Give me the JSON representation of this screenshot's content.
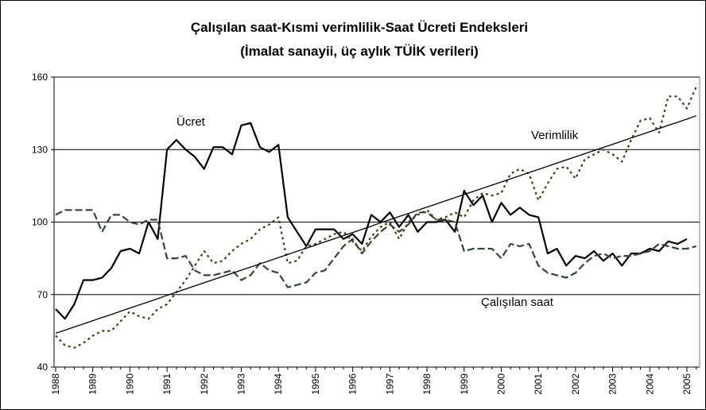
{
  "chart_data": {
    "type": "line",
    "title": "Çalışılan saat-Kısmi verimlilik-Saat Ücreti Endeksleri",
    "subtitle": "(İmalat sanayii, üç aylık TÜİK verileri)",
    "categories": [
      "1988",
      null,
      null,
      null,
      "1989",
      null,
      null,
      null,
      "1990",
      null,
      null,
      null,
      "1991",
      null,
      null,
      null,
      "1992",
      null,
      null,
      null,
      "1993",
      null,
      null,
      null,
      "1994",
      null,
      null,
      null,
      "1995",
      null,
      null,
      null,
      "1996",
      null,
      null,
      null,
      "1997",
      null,
      null,
      null,
      "1998",
      null,
      null,
      null,
      "1999",
      null,
      null,
      null,
      "2000",
      null,
      null,
      null,
      "2001",
      null,
      null,
      null,
      "2002",
      null,
      null,
      null,
      "2003",
      null,
      null,
      null,
      "2004",
      null,
      null,
      null,
      "2005",
      null
    ],
    "ylim": [
      40,
      160
    ],
    "yticks": [
      40,
      70,
      100,
      130,
      160
    ],
    "grid": true,
    "series": [
      {
        "name": "Ücret",
        "color": "#000000",
        "dash": "none",
        "values": [
          64,
          60,
          66,
          76,
          76,
          77,
          81,
          88,
          89,
          87,
          100,
          93,
          130,
          134,
          130,
          127,
          122,
          131,
          131,
          128,
          140,
          141,
          131,
          129,
          132,
          102,
          96,
          90,
          97,
          97,
          97,
          93,
          95,
          91,
          103,
          100,
          104,
          98,
          103,
          96,
          100,
          100,
          101,
          96,
          113,
          107,
          111,
          100,
          108,
          103,
          106,
          103,
          102,
          87,
          89,
          82,
          86,
          85,
          88,
          84,
          87,
          82,
          87,
          87,
          89,
          88,
          92,
          91,
          93,
          null
        ]
      },
      {
        "name": "Verimlilik",
        "color": "#3f3f12",
        "dash": "3,4",
        "values": [
          53,
          49,
          48,
          50,
          53,
          55,
          55,
          59,
          63,
          61,
          60,
          64,
          66,
          71,
          76,
          82,
          88,
          83,
          84,
          88,
          91,
          93,
          97,
          99,
          102,
          83,
          84,
          90,
          91,
          93,
          95,
          96,
          92,
          88,
          94,
          98,
          100,
          93,
          100,
          103,
          105,
          101,
          102,
          104,
          102,
          109,
          112,
          111,
          112,
          120,
          122,
          120,
          109,
          116,
          122,
          123,
          118,
          126,
          128,
          130,
          128,
          125,
          134,
          142,
          143,
          137,
          152,
          152,
          147,
          156
        ]
      },
      {
        "name": "Çalışılan saat",
        "color": "#2f4a2f",
        "dash": "9,4",
        "values": [
          103,
          105,
          105,
          105,
          105,
          96,
          103,
          103,
          100,
          99,
          101,
          101,
          85,
          85,
          86,
          80,
          78,
          78,
          79,
          80,
          76,
          78,
          83,
          80,
          79,
          73,
          74,
          75,
          79,
          80,
          85,
          90,
          93,
          87,
          92,
          96,
          99,
          96,
          99,
          104,
          104,
          101,
          101,
          100,
          88,
          89,
          89,
          89,
          85,
          91,
          90,
          91,
          82,
          79,
          78,
          77,
          79,
          83,
          86,
          87,
          85,
          86,
          86,
          87,
          88,
          91,
          90,
          89,
          89,
          90
        ]
      },
      {
        "color": "#000000",
        "dash": "none",
        "values": [
          54.0,
          55.3,
          56.6,
          57.9,
          59.2,
          60.5,
          61.8,
          63.1,
          64.4,
          65.7,
          67.0,
          68.3,
          69.7,
          71.0,
          72.3,
          73.6,
          74.9,
          76.2,
          77.5,
          78.8,
          80.1,
          81.4,
          82.7,
          84.0,
          85.3,
          86.6,
          87.9,
          89.2,
          90.5,
          91.8,
          93.1,
          94.4,
          95.7,
          97.0,
          98.3,
          99.7,
          101.0,
          102.3,
          103.6,
          104.9,
          106.2,
          107.5,
          108.8,
          110.1,
          111.4,
          112.7,
          114.0,
          115.3,
          116.6,
          117.9,
          119.2,
          120.5,
          121.8,
          123.1,
          124.4,
          125.7,
          127.0,
          128.3,
          129.6,
          130.9,
          132.2,
          133.5,
          134.8,
          136.1,
          137.4,
          138.7,
          140.0,
          141.3,
          142.6,
          144.0
        ]
      }
    ]
  }
}
